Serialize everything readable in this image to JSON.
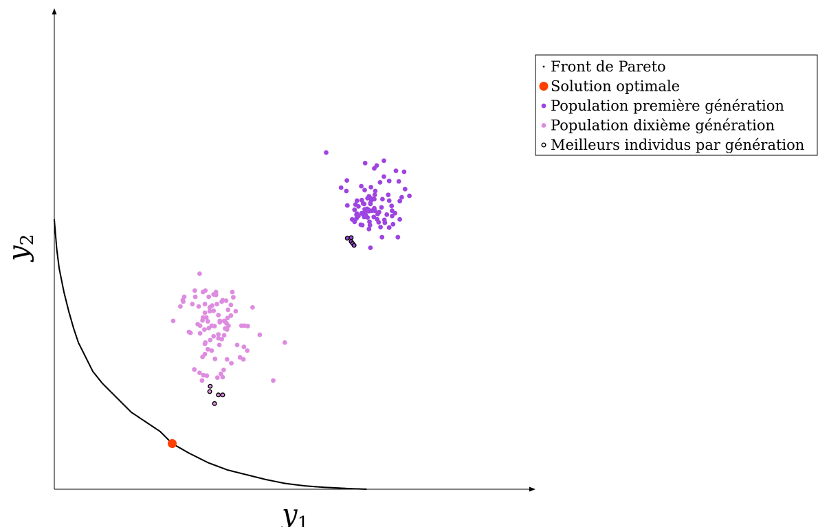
{
  "chart_data": {
    "type": "scatter",
    "title": "",
    "xlabel": "y",
    "xlabel_sub": "1",
    "ylabel": "y",
    "ylabel_sub": "2",
    "xlim": [
      0,
      1
    ],
    "ylim": [
      0,
      1
    ],
    "grid": false,
    "legend_position": "top-right",
    "colors": {
      "pareto": "#000000",
      "optimal": "#ff4000",
      "gen1": "#9e44e0",
      "gen10": "#dd8ce0",
      "best_stroke": "#000000"
    },
    "legend": [
      {
        "key": "pareto",
        "label": "Front de Pareto"
      },
      {
        "key": "optimal",
        "label": "Solution optimale"
      },
      {
        "key": "gen1",
        "label": "Population première génération"
      },
      {
        "key": "gen10",
        "label": "Population dixième génération"
      },
      {
        "key": "best",
        "label": "Meilleurs individus par génération"
      }
    ],
    "pareto_front": {
      "x": [
        0.0,
        0.005,
        0.01,
        0.02,
        0.03,
        0.04,
        0.05,
        0.065,
        0.08,
        0.1,
        0.12,
        0.14,
        0.16,
        0.19,
        0.22,
        0.245,
        0.28,
        0.32,
        0.36,
        0.4,
        0.44,
        0.48,
        0.52,
        0.56,
        0.6,
        0.62,
        0.65
      ],
      "y": [
        0.56,
        0.5,
        0.46,
        0.41,
        0.37,
        0.335,
        0.305,
        0.275,
        0.245,
        0.22,
        0.2,
        0.18,
        0.16,
        0.14,
        0.12,
        0.095,
        0.075,
        0.055,
        0.04,
        0.03,
        0.02,
        0.012,
        0.007,
        0.004,
        0.002,
        0.001,
        0.0
      ]
    },
    "optimal_solution": {
      "x": 0.245,
      "y": 0.095
    },
    "population_gen1": {
      "x": [
        0.565,
        0.646,
        0.67,
        0.685,
        0.665,
        0.71,
        0.685,
        0.727,
        0.716,
        0.696,
        0.677,
        0.729,
        0.738,
        0.607,
        0.645,
        0.638,
        0.658,
        0.666,
        0.694,
        0.722,
        0.718,
        0.696,
        0.629,
        0.665,
        0.659,
        0.609,
        0.642,
        0.644,
        0.701,
        0.65,
        0.657,
        0.624,
        0.628,
        0.68,
        0.666,
        0.702,
        0.691,
        0.708,
        0.672,
        0.718,
        0.646,
        0.632,
        0.624,
        0.644,
        0.647,
        0.632,
        0.664,
        0.665,
        0.702,
        0.674,
        0.696,
        0.637,
        0.675,
        0.66,
        0.651,
        0.639,
        0.687,
        0.619,
        0.654,
        0.654,
        0.641,
        0.667,
        0.658,
        0.657,
        0.608,
        0.639,
        0.651,
        0.628,
        0.629,
        0.596,
        0.626,
        0.655,
        0.656,
        0.681,
        0.678,
        0.645,
        0.671,
        0.653,
        0.686,
        0.682,
        0.704,
        0.714,
        0.657,
        0.64,
        0.654
      ],
      "y": [
        0.7,
        0.678,
        0.673,
        0.683,
        0.667,
        0.662,
        0.65,
        0.66,
        0.64,
        0.641,
        0.638,
        0.624,
        0.61,
        0.62,
        0.622,
        0.63,
        0.628,
        0.612,
        0.612,
        0.607,
        0.599,
        0.6,
        0.6,
        0.603,
        0.601,
        0.59,
        0.594,
        0.593,
        0.589,
        0.583,
        0.593,
        0.581,
        0.571,
        0.586,
        0.579,
        0.579,
        0.571,
        0.574,
        0.572,
        0.561,
        0.578,
        0.568,
        0.556,
        0.566,
        0.571,
        0.588,
        0.566,
        0.584,
        0.568,
        0.555,
        0.544,
        0.55,
        0.576,
        0.579,
        0.565,
        0.574,
        0.554,
        0.561,
        0.609,
        0.578,
        0.572,
        0.62,
        0.605,
        0.595,
        0.642,
        0.601,
        0.605,
        0.563,
        0.573,
        0.627,
        0.592,
        0.556,
        0.549,
        0.524,
        0.545,
        0.582,
        0.561,
        0.581,
        0.56,
        0.603,
        0.551,
        0.524,
        0.502,
        0.549,
        0.541
      ]
    },
    "population_gen10": {
      "x": [
        0.302,
        0.27,
        0.321,
        0.309,
        0.336,
        0.314,
        0.292,
        0.293,
        0.267,
        0.287,
        0.37,
        0.331,
        0.336,
        0.372,
        0.35,
        0.357,
        0.348,
        0.338,
        0.328,
        0.412,
        0.323,
        0.3,
        0.268,
        0.313,
        0.323,
        0.331,
        0.361,
        0.313,
        0.316,
        0.309,
        0.308,
        0.344,
        0.356,
        0.319,
        0.298,
        0.28,
        0.283,
        0.367,
        0.377,
        0.341,
        0.353,
        0.367,
        0.36,
        0.344,
        0.327,
        0.358,
        0.355,
        0.362,
        0.341,
        0.312,
        0.303,
        0.314,
        0.313,
        0.319,
        0.348,
        0.343,
        0.313,
        0.334,
        0.359,
        0.389,
        0.38,
        0.395,
        0.402,
        0.341,
        0.333,
        0.321,
        0.359,
        0.324,
        0.346,
        0.352,
        0.401,
        0.368,
        0.386,
        0.394,
        0.427,
        0.479,
        0.455,
        0.393,
        0.35,
        0.339,
        0.317,
        0.302,
        0.31,
        0.307,
        0.291,
        0.262,
        0.247,
        0.303,
        0.308,
        0.327,
        0.331,
        0.353
      ],
      "y": [
        0.448,
        0.4,
        0.4,
        0.41,
        0.41,
        0.413,
        0.413,
        0.4,
        0.393,
        0.385,
        0.41,
        0.405,
        0.404,
        0.399,
        0.393,
        0.392,
        0.39,
        0.385,
        0.382,
        0.378,
        0.378,
        0.38,
        0.39,
        0.385,
        0.37,
        0.371,
        0.373,
        0.367,
        0.357,
        0.357,
        0.351,
        0.347,
        0.347,
        0.349,
        0.343,
        0.327,
        0.325,
        0.383,
        0.37,
        0.362,
        0.35,
        0.361,
        0.356,
        0.35,
        0.34,
        0.345,
        0.334,
        0.34,
        0.322,
        0.332,
        0.324,
        0.305,
        0.302,
        0.291,
        0.312,
        0.3,
        0.281,
        0.271,
        0.27,
        0.34,
        0.3,
        0.34,
        0.339,
        0.314,
        0.339,
        0.335,
        0.332,
        0.31,
        0.24,
        0.248,
        0.288,
        0.262,
        0.274,
        0.296,
        0.321,
        0.305,
        0.226,
        0.27,
        0.233,
        0.232,
        0.236,
        0.242,
        0.237,
        0.226,
        0.249,
        0.38,
        0.35,
        0.34,
        0.275,
        0.288,
        0.318,
        0.32
      ]
    },
    "best_individuals": {
      "x": [
        0.609,
        0.617,
        0.62,
        0.617,
        0.623,
        0.324,
        0.323,
        0.341,
        0.35,
        0.333
      ],
      "y": [
        0.522,
        0.515,
        0.511,
        0.523,
        0.507,
        0.214,
        0.203,
        0.196,
        0.196,
        0.178
      ]
    }
  }
}
